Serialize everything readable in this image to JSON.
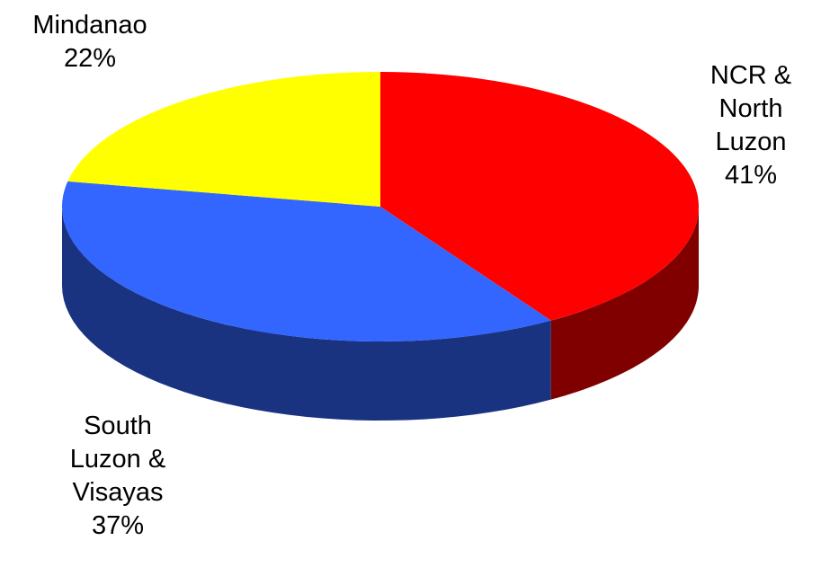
{
  "chart_data": {
    "type": "pie",
    "style": "3d",
    "title": "",
    "series": [
      {
        "name": "",
        "slices": [
          {
            "label_lines": [
              "NCR &",
              "North",
              "Luzon"
            ],
            "label": "NCR & North Luzon",
            "value": 41,
            "value_text": "41%",
            "color": "#ff0000",
            "side_color": "#800000"
          },
          {
            "label_lines": [
              "South",
              "Luzon &",
              "Visayas"
            ],
            "label": "South Luzon & Visayas",
            "value": 37,
            "value_text": "37%",
            "color": "#3366ff",
            "side_color": "#1a3380"
          },
          {
            "label_lines": [
              "Mindanao"
            ],
            "label": "Mindanao",
            "value": 22,
            "value_text": "22%",
            "color": "#ffff00",
            "side_color": "#808000"
          }
        ]
      }
    ],
    "start_angle_deg": 90,
    "direction": "clockwise",
    "legend": "none"
  }
}
